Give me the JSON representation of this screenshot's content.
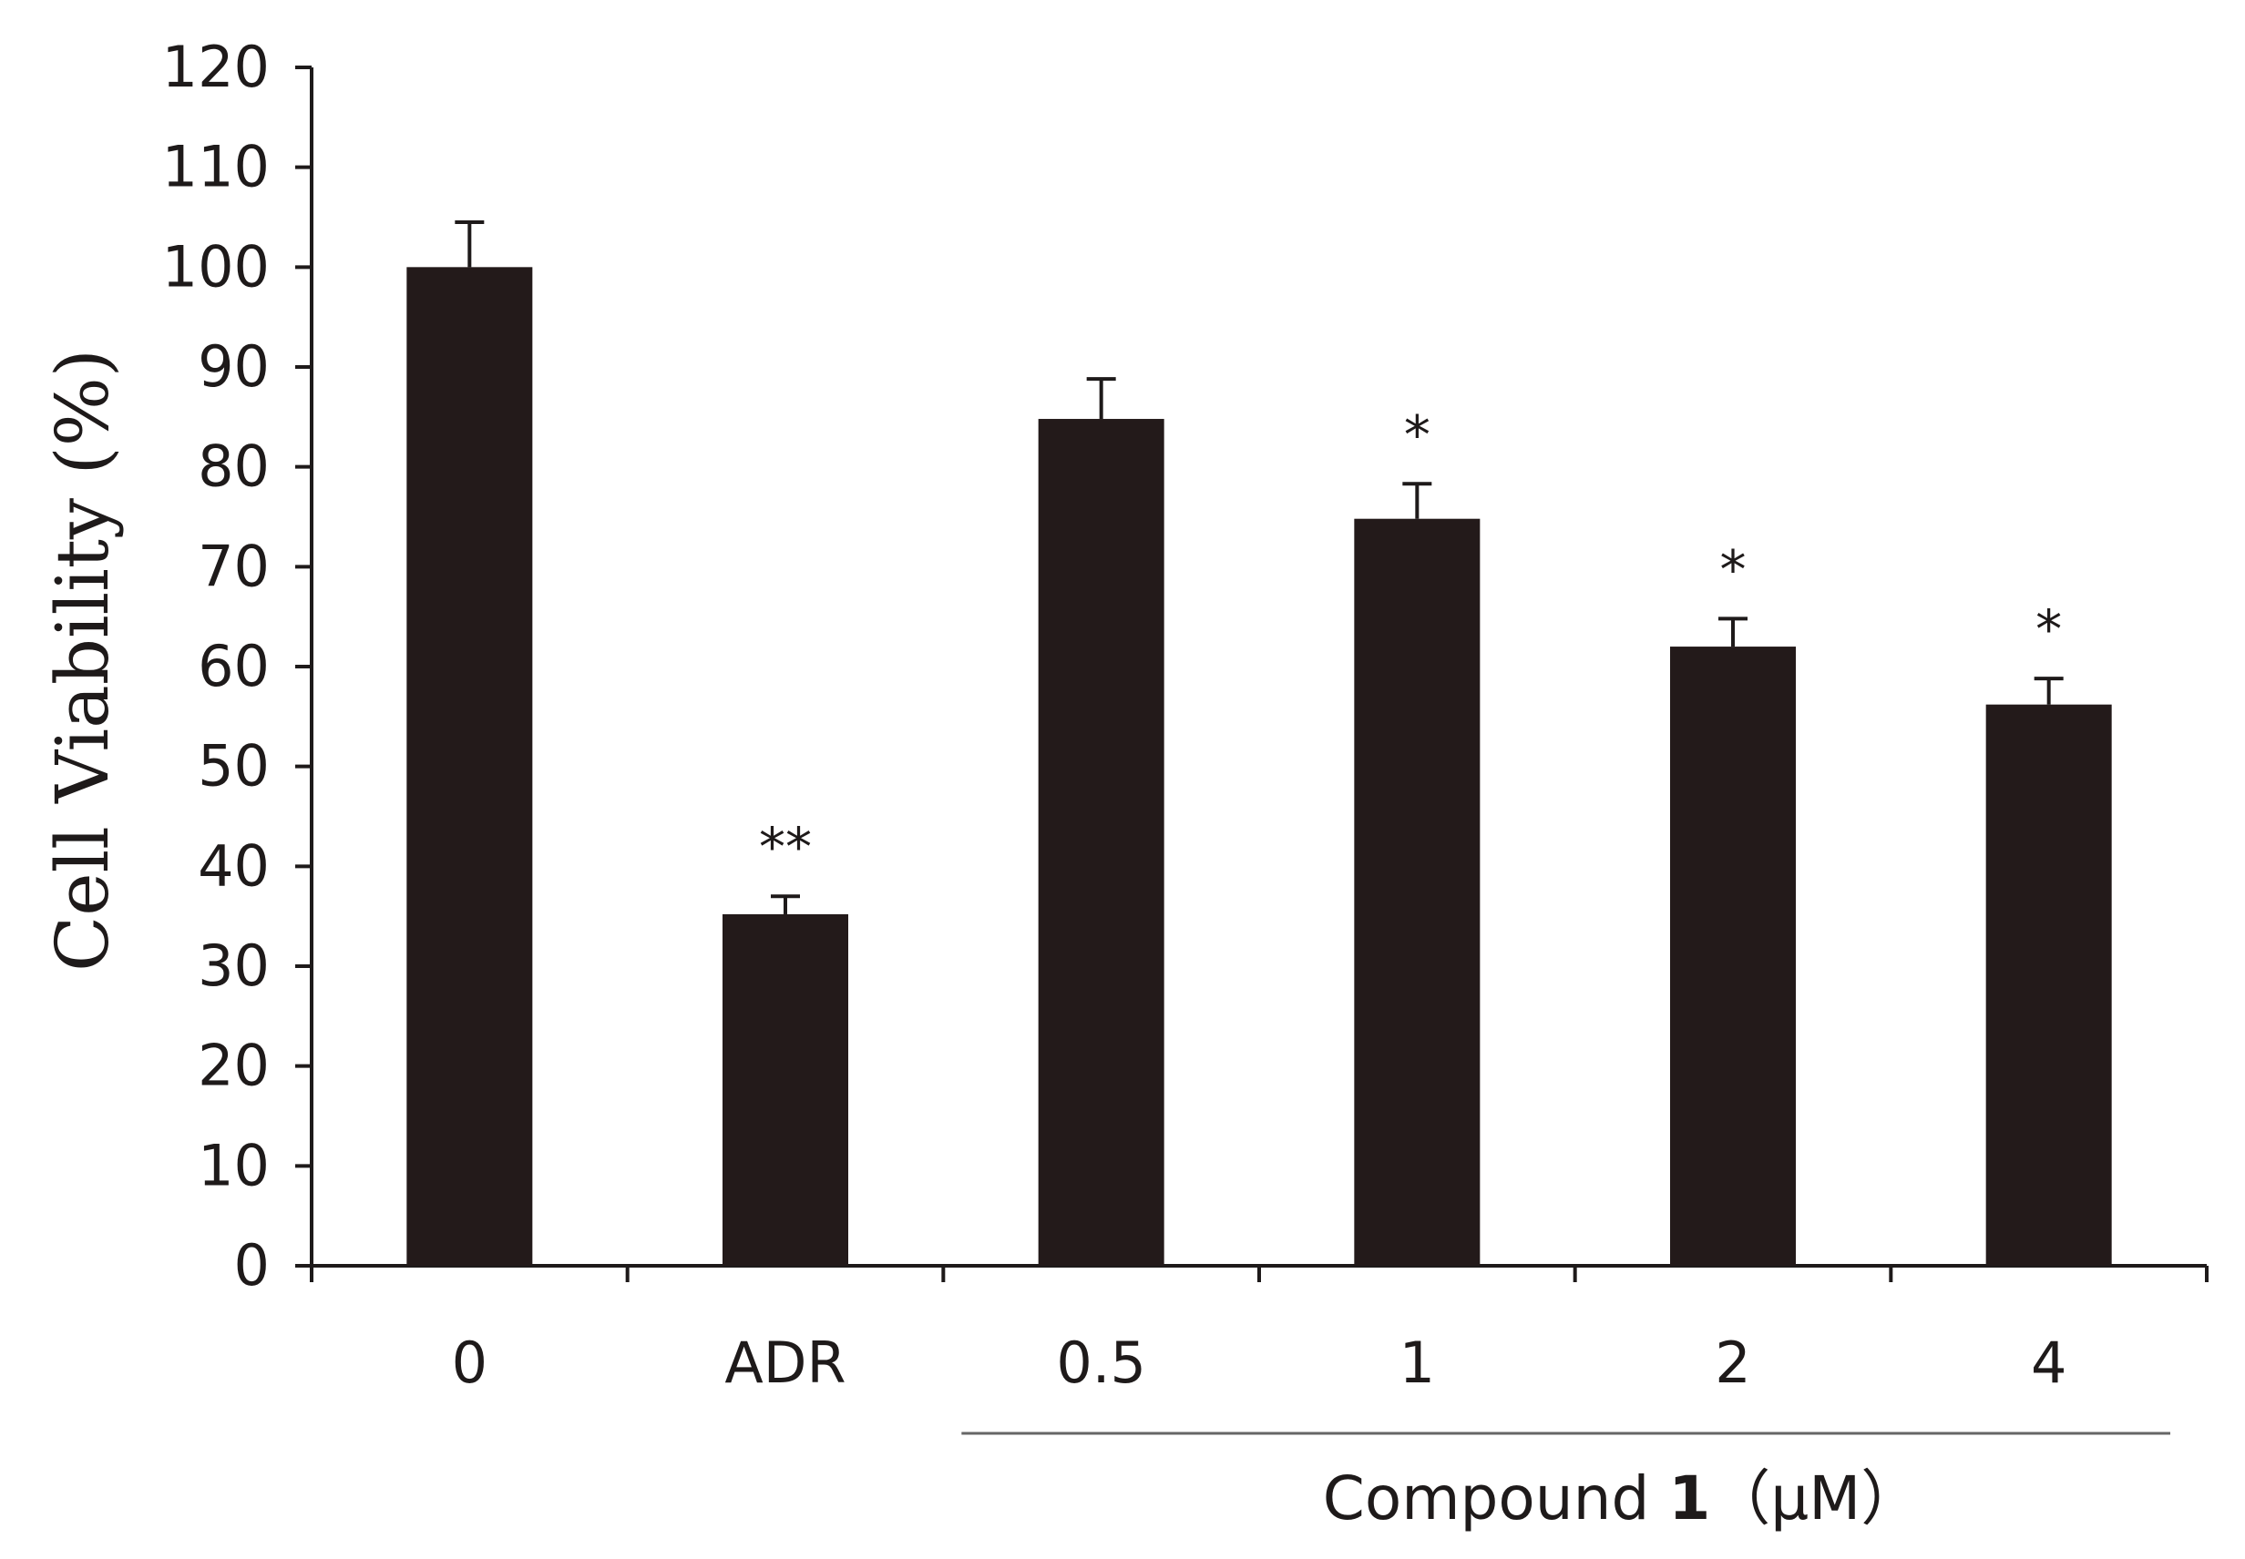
{
  "chart_data": {
    "type": "bar",
    "categories": [
      "0",
      "ADR",
      "0.5",
      "1",
      "2",
      "4"
    ],
    "values": [
      100,
      35.2,
      84.8,
      74.8,
      62.0,
      56.2
    ],
    "errors": [
      4.5,
      1.8,
      4.0,
      3.5,
      2.8,
      2.6
    ],
    "significance": [
      "",
      "**",
      "",
      "*",
      "*",
      "*"
    ],
    "ylabel": "Cell Viability (%)",
    "ylim": [
      0,
      120
    ],
    "yticks": [
      0,
      10,
      20,
      30,
      40,
      50,
      60,
      70,
      80,
      90,
      100,
      110,
      120
    ],
    "group_label": {
      "prefix": "Compound ",
      "bold": "1",
      "suffix": "（μM）"
    },
    "bar_color": "#231a1a",
    "axis_color": "#1e1a1a",
    "grid": false,
    "legend": "none"
  }
}
